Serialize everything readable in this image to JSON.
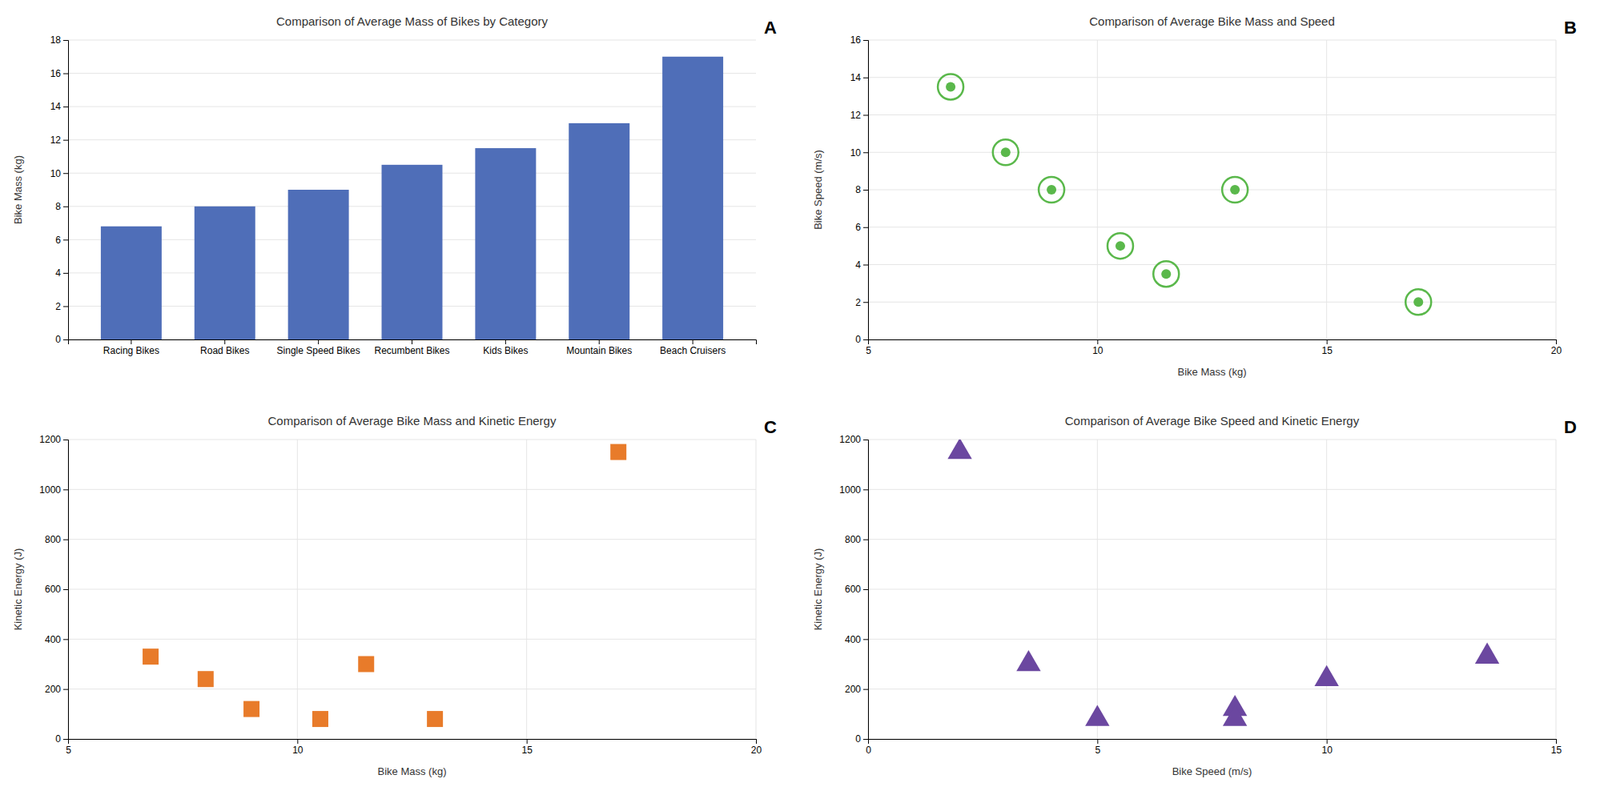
{
  "chart_data": [
    {
      "type": "bar",
      "title": "Comparison of Average Mass of Bikes by Category",
      "ylabel": "Bike Mass (kg)",
      "categories": [
        "Racing Bikes",
        "Road Bikes",
        "Single Speed Bikes",
        "Recumbent Bikes",
        "Kids Bikes",
        "Mountain Bikes",
        "Beach Cruisers"
      ],
      "values": [
        6.8,
        8.0,
        9.0,
        10.5,
        11.5,
        13.0,
        17.0
      ],
      "color": "#4f6eb8",
      "ylim": [
        0,
        18
      ],
      "yticks": [
        0,
        2,
        4,
        6,
        8,
        10,
        12,
        14,
        16,
        18
      ],
      "grid": "y",
      "annotations": [
        "A"
      ]
    },
    {
      "type": "scatter",
      "title": "Comparison of Average Bike Mass and Speed",
      "xlabel": "Bike Mass (kg)",
      "ylabel": "Bike Speed (m/s)",
      "x": [
        6.8,
        8.0,
        9.0,
        10.5,
        11.5,
        13.0,
        17.0
      ],
      "values": [
        13.5,
        10.0,
        8.0,
        5.0,
        3.5,
        8.0,
        2.0
      ],
      "color": "#5ab84b",
      "marker": "bullseye",
      "xlim": [
        5,
        20
      ],
      "xticks": [
        5,
        10,
        15,
        20
      ],
      "ylim": [
        0,
        16
      ],
      "yticks": [
        0,
        2,
        4,
        6,
        8,
        10,
        12,
        14,
        16
      ],
      "grid": true,
      "annotations": [
        "B"
      ]
    },
    {
      "type": "scatter",
      "title": "Comparison of Average Bike Mass and Kinetic Energy",
      "xlabel": "Bike Mass (kg)",
      "ylabel": "Kinetic Energy (J)",
      "x": [
        6.8,
        8.0,
        9.0,
        10.5,
        11.5,
        13.0,
        17.0
      ],
      "values": [
        330,
        240,
        120,
        80,
        300,
        80,
        1150
      ],
      "color": "#e87b2a",
      "marker": "square",
      "xlim": [
        5,
        20
      ],
      "xticks": [
        5,
        10,
        15,
        20
      ],
      "ylim": [
        0,
        1200
      ],
      "yticks": [
        0,
        200,
        400,
        600,
        800,
        1000,
        1200
      ],
      "grid": true,
      "annotations": [
        "C"
      ]
    },
    {
      "type": "scatter",
      "title": "Comparison of Average Bike Speed and Kinetic Energy",
      "xlabel": "Bike Speed (m/s)",
      "ylabel": "Kinetic Energy (J)",
      "x": [
        13.5,
        10.0,
        8.0,
        5.0,
        3.5,
        8.0,
        2.0
      ],
      "values": [
        330,
        240,
        120,
        80,
        300,
        80,
        1150
      ],
      "color": "#6b47a0",
      "marker": "triangle",
      "xlim": [
        0,
        15
      ],
      "xticks": [
        0,
        5,
        10,
        15
      ],
      "ylim": [
        0,
        1200
      ],
      "yticks": [
        0,
        200,
        400,
        600,
        800,
        1000,
        1200
      ],
      "grid": true,
      "annotations": [
        "D"
      ]
    }
  ]
}
